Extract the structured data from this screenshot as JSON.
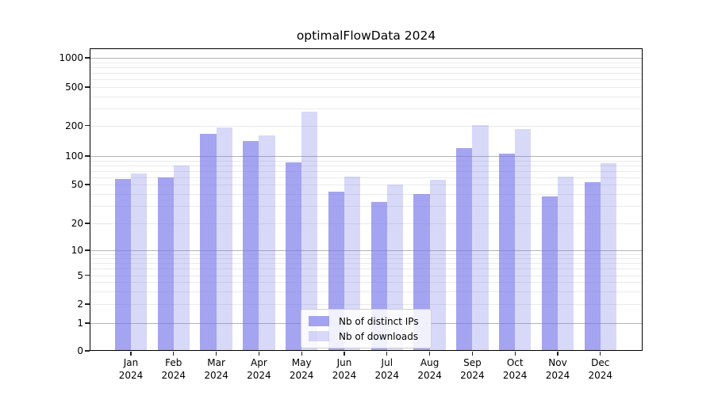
{
  "chart_data": {
    "type": "bar",
    "title": "optimalFlowData 2024",
    "xlabel": "",
    "ylabel": "",
    "x_year": "2024",
    "categories": [
      "Jan",
      "Feb",
      "Mar",
      "Apr",
      "May",
      "Jun",
      "Jul",
      "Aug",
      "Sep",
      "Oct",
      "Nov",
      "Dec"
    ],
    "series": [
      {
        "name": "Nb of distinct IPs",
        "color": "rgba(115,115,234,0.65)",
        "values": [
          57,
          59,
          166,
          141,
          85,
          42,
          33,
          40,
          119,
          106,
          38,
          53
        ]
      },
      {
        "name": "Nb of downloads",
        "color": "rgba(115,115,234,0.28)",
        "values": [
          65,
          79,
          192,
          161,
          278,
          61,
          50,
          56,
          203,
          184,
          61,
          84
        ]
      }
    ],
    "yscale": "symlog",
    "y_ticks": [
      0,
      1,
      2,
      5,
      10,
      20,
      50,
      100,
      200,
      500,
      1000
    ],
    "ylim": [
      0,
      1250
    ],
    "grid": "horizontal",
    "legend_position": "lower-center-inside"
  },
  "colors": {
    "bar_base": "#7373ea",
    "grid_minor": "#eaeaea",
    "grid_major": "#b4b4b4",
    "frame": "#000000",
    "legend_border": "#cfcfcf"
  }
}
